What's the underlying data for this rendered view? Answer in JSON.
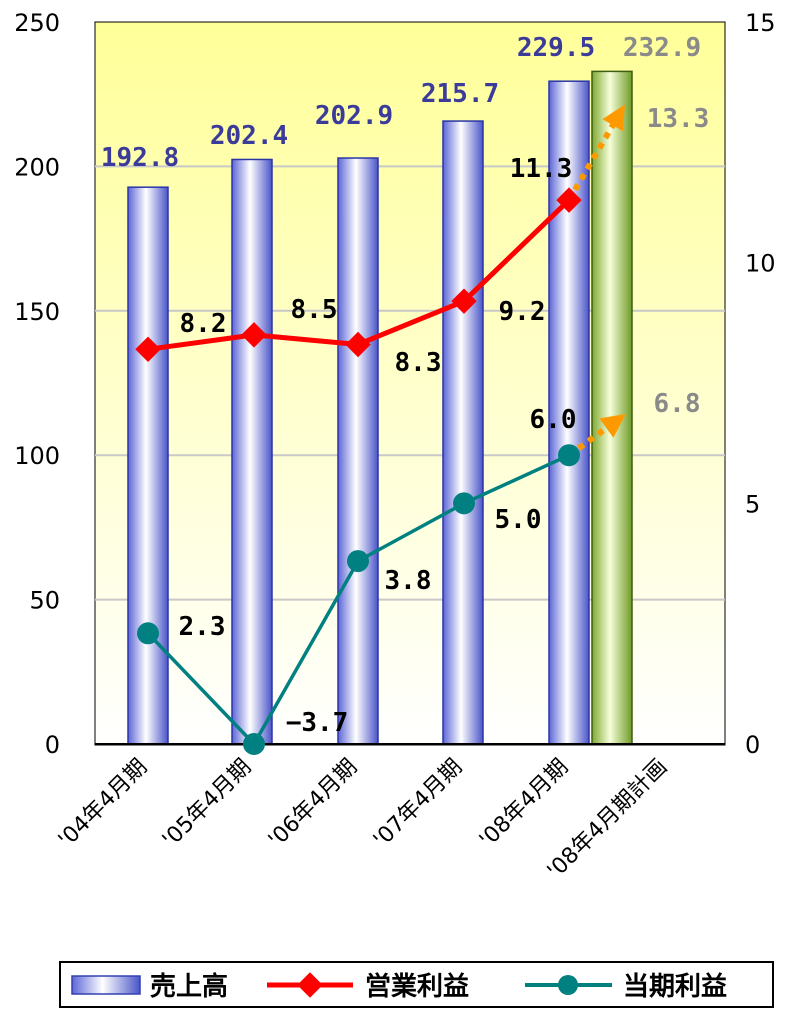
{
  "chart_data": {
    "type": "bar",
    "categories": [
      "'04年4月期",
      "'05年4月期",
      "'06年4月期",
      "'07年4月期",
      "'08年4月期",
      "'08年4月期計画"
    ],
    "left_axis": {
      "min": 0,
      "max": 250,
      "ticks": [
        0,
        50,
        100,
        150,
        200,
        250
      ]
    },
    "right_axis": {
      "min": 0,
      "max": 15,
      "ticks": [
        0,
        5,
        10,
        15
      ]
    },
    "grid": true,
    "legend_position": "bottom",
    "series": [
      {
        "name": "売上高",
        "type": "bar",
        "axis": "left",
        "values": [
          192.8,
          202.4,
          202.9,
          215.7,
          229.5,
          232.9
        ],
        "labels": [
          "192.8",
          "202.4",
          "202.9",
          "215.7",
          "229.5",
          "232.9"
        ],
        "planned_index": 5
      },
      {
        "name": "営業利益",
        "type": "line",
        "axis": "right",
        "marker": "diamond",
        "values": [
          8.2,
          8.5,
          8.3,
          9.2,
          11.3,
          13.3
        ],
        "labels": [
          "8.2",
          "8.5",
          "8.3",
          "9.2",
          "11.3",
          "13.3"
        ],
        "planned_index": 5
      },
      {
        "name": "当期利益",
        "type": "line",
        "axis": "right",
        "marker": "circle",
        "values": [
          2.3,
          -3.7,
          3.8,
          5.0,
          6.0,
          6.8
        ],
        "labels": [
          "2.3",
          "-3.7",
          "3.8",
          "5.0",
          "6.0",
          "6.8"
        ],
        "planned_index": 5
      }
    ],
    "colors": {
      "bar_label": "#3b3b9a",
      "plan_label": "#8a8a8a",
      "operating": "#ff0000",
      "net": "#008080",
      "plan_arrow": "#ff9900",
      "plot_top": "#ffff99",
      "plot_bottom": "#ffffff"
    }
  }
}
